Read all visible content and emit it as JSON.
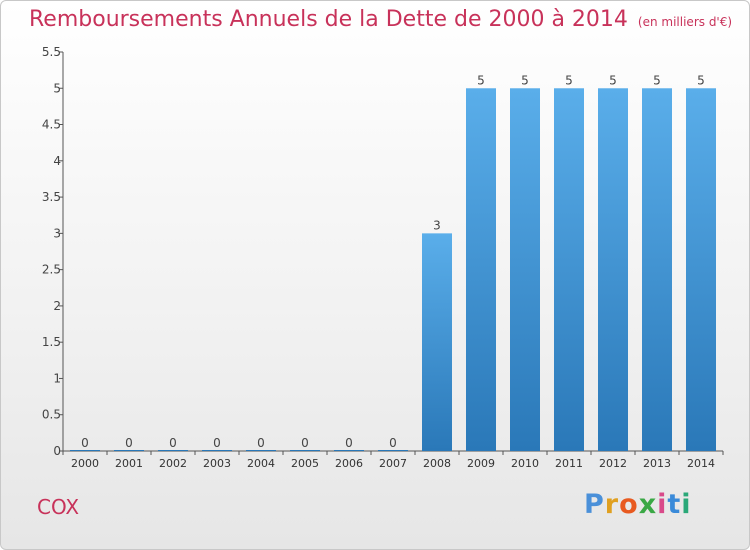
{
  "title": "Remboursements Annuels de la Dette de 2000 à 2014",
  "unit_label": "(en milliers d'€)",
  "commune": "COX",
  "logo": {
    "text": "Proxiti",
    "letter_colors": [
      "#4a90d9",
      "#e0a020",
      "#e85a20",
      "#3aa845",
      "#d94a8a",
      "#3a8ad9",
      "#2aa878"
    ]
  },
  "colors": {
    "title": "#c8325a",
    "bar_top": "#5aaeea",
    "bar_bottom": "#2a78b8"
  },
  "chart_data": {
    "type": "bar",
    "title": "Remboursements Annuels de la Dette de 2000 à 2014",
    "categories": [
      "2000",
      "2001",
      "2002",
      "2003",
      "2004",
      "2005",
      "2006",
      "2007",
      "2008",
      "2009",
      "2010",
      "2011",
      "2012",
      "2013",
      "2014"
    ],
    "values": [
      0,
      0,
      0,
      0,
      0,
      0,
      0,
      0,
      3,
      5,
      5,
      5,
      5,
      5,
      5
    ],
    "value_labels": [
      "0",
      "0",
      "0",
      "0",
      "0",
      "0",
      "0",
      "0",
      "3",
      "5",
      "5",
      "5",
      "5",
      "5",
      "5"
    ],
    "y_ticks": [
      {
        "value": 0,
        "label": "0"
      },
      {
        "value": 0.5,
        "label": "0.5"
      },
      {
        "value": 1,
        "label": "1"
      },
      {
        "value": 1.5,
        "label": "1.5"
      },
      {
        "value": 2,
        "label": "2"
      },
      {
        "value": 2.5,
        "label": "2.5"
      },
      {
        "value": 3,
        "label": "3"
      },
      {
        "value": 3.5,
        "label": "3.5"
      },
      {
        "value": 4,
        "label": "4"
      },
      {
        "value": 4.5,
        "label": "4.5"
      },
      {
        "value": 5,
        "label": "5"
      },
      {
        "value": 5.5,
        "label": "5.5"
      }
    ],
    "ylim": [
      0,
      5.5
    ],
    "xlabel": "",
    "ylabel": "",
    "grid": false
  }
}
